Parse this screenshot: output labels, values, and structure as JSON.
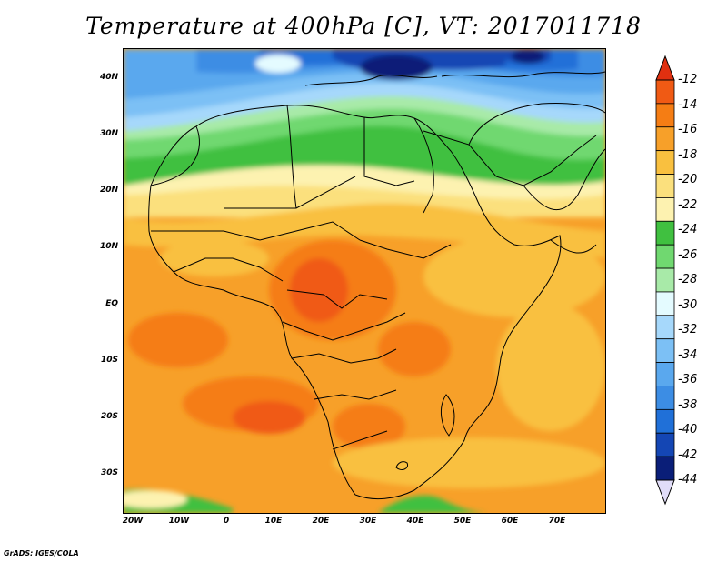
{
  "title": "Temperature at 400hPa [C], VT: 2017011718",
  "credit": "GrADS: IGES/COLA",
  "map": {
    "projection": "latlon",
    "lon_range": [
      -25,
      80
    ],
    "lat_range": [
      -37,
      45
    ],
    "lat_labels": [
      "40N",
      "30N",
      "20N",
      "10N",
      "EQ",
      "10S",
      "20S",
      "30S"
    ],
    "lat_values": [
      40,
      30,
      20,
      10,
      0,
      -10,
      -20,
      -30
    ],
    "lon_labels": [
      "20W",
      "10W",
      "0",
      "10E",
      "20E",
      "30E",
      "40E",
      "50E",
      "60E",
      "70E"
    ],
    "lon_values": [
      -20,
      -10,
      0,
      10,
      20,
      30,
      40,
      50,
      60,
      70
    ]
  },
  "colorbar": {
    "labels": [
      "-12",
      "-14",
      "-16",
      "-18",
      "-20",
      "-22",
      "-24",
      "-26",
      "-28",
      "-30",
      "-32",
      "-34",
      "-36",
      "-38",
      "-40",
      "-42",
      "-44"
    ],
    "colors": [
      "#f05a14",
      "#f57d14",
      "#f7a029",
      "#f9c03f",
      "#fbe07d",
      "#fdf2b0",
      "#40c040",
      "#70d870",
      "#a8eaa8",
      "#e4fbff",
      "#a6d8fb",
      "#7cc0f5",
      "#5aa8ee",
      "#3c8de4",
      "#2070d8",
      "#1446b4",
      "#0a1e78"
    ],
    "top_arrow_color": "#e03010",
    "bottom_arrow_color": "#e0dcf8"
  }
}
